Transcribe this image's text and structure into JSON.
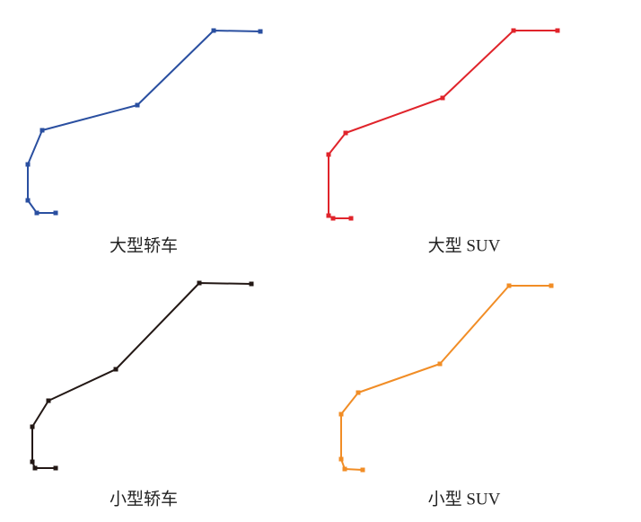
{
  "chart_data": [
    {
      "type": "line",
      "title": "大型轿车",
      "color": "#2a4fa0",
      "xlim": [
        0,
        300
      ],
      "ylim": [
        0,
        230
      ],
      "x": [
        62,
        41,
        31,
        31,
        47,
        153,
        238,
        290
      ],
      "values": [
        13,
        13,
        27,
        67,
        105,
        133,
        216,
        215
      ]
    },
    {
      "type": "line",
      "title": "大型 SUV",
      "color": "#e0242b",
      "xlim": [
        0,
        300
      ],
      "ylim": [
        0,
        230
      ],
      "x": [
        34,
        14,
        9,
        9,
        28,
        136,
        215,
        264
      ],
      "values": [
        7,
        7,
        10,
        78,
        102,
        141,
        216,
        216
      ]
    },
    {
      "type": "line",
      "title": "小型轿车",
      "color": "#231815",
      "xlim": [
        0,
        300
      ],
      "ylim": [
        0,
        230
      ],
      "x": [
        62,
        39,
        36,
        36,
        54,
        129,
        222,
        280
      ],
      "values": [
        11,
        11,
        18,
        57,
        86,
        121,
        217,
        216
      ]
    },
    {
      "type": "line",
      "title": "小型 SUV",
      "color": "#f18d26",
      "xlim": [
        0,
        300
      ],
      "ylim": [
        0,
        230
      ],
      "x": [
        47,
        27,
        23,
        23,
        42,
        133,
        210,
        257
      ],
      "values": [
        9,
        10,
        21,
        71,
        95,
        127,
        214,
        214
      ]
    }
  ]
}
